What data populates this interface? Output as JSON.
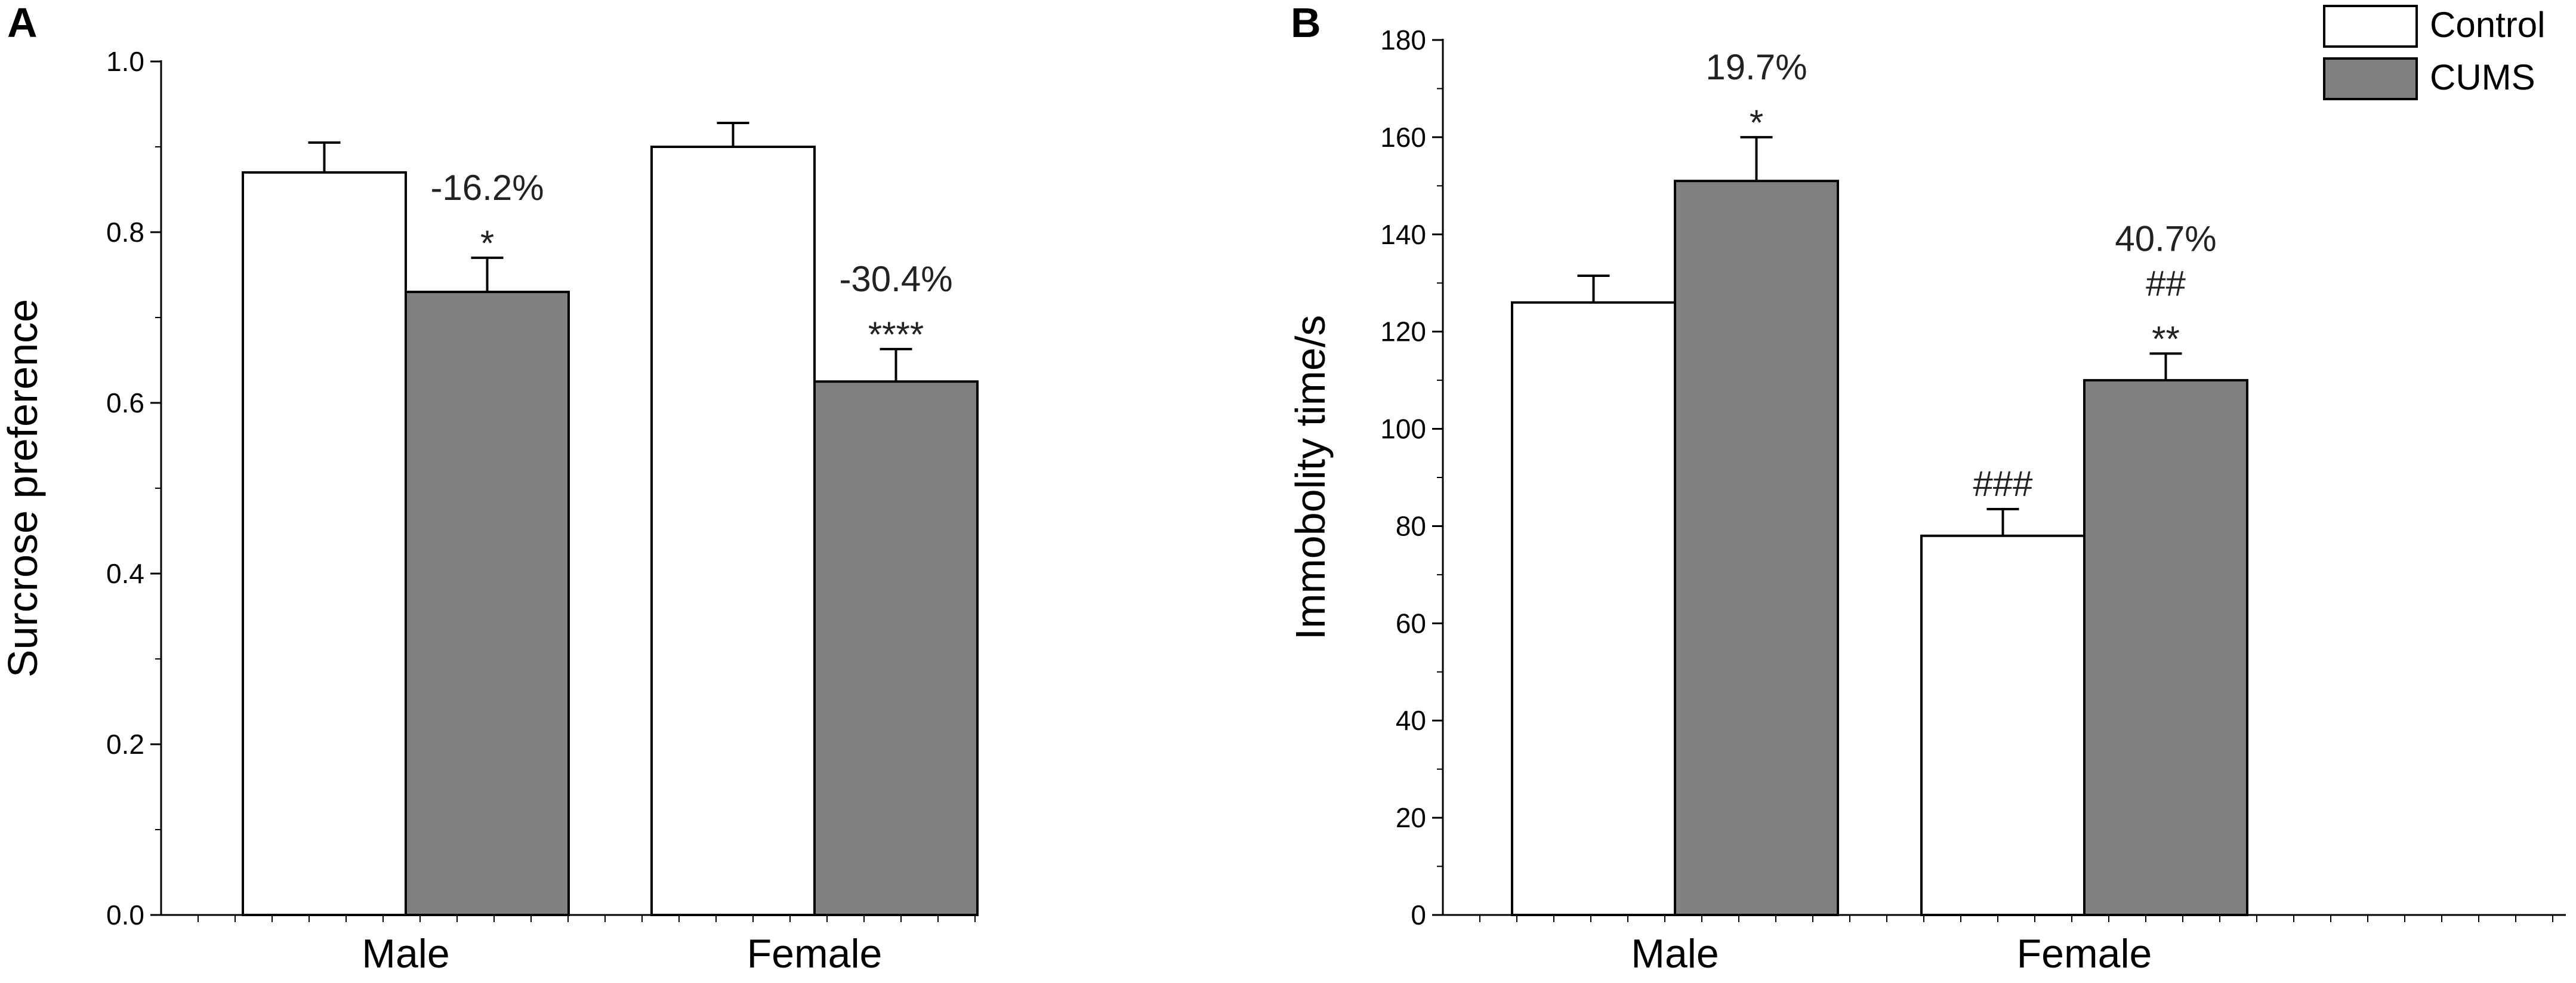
{
  "chart_data": [
    {
      "panel": "A",
      "type": "bar",
      "categories": [
        "Male",
        "Female"
      ],
      "series": [
        {
          "name": "Control",
          "values": [
            0.87,
            0.9
          ],
          "errors": [
            0.035,
            0.028
          ],
          "color": "#ffffff"
        },
        {
          "name": "CUMS",
          "values": [
            0.73,
            0.625
          ],
          "errors": [
            0.04,
            0.038
          ],
          "color": "#808080"
        }
      ],
      "ylabel": "Surcrose preference",
      "xlabel": "",
      "ylim": [
        0,
        1.0
      ],
      "yticks": [
        0.0,
        0.2,
        0.4,
        0.6,
        0.8,
        1.0
      ],
      "ytick_labels": [
        "0.0",
        "0.2",
        "0.4",
        "0.6",
        "0.8",
        "1.0"
      ],
      "annotations": [
        {
          "category": 0,
          "series": 1,
          "lines": [
            "-16.2%",
            "*"
          ]
        },
        {
          "category": 1,
          "series": 1,
          "lines": [
            "-30.4%",
            "****"
          ]
        }
      ]
    },
    {
      "panel": "B",
      "type": "bar",
      "categories": [
        "Male",
        "Female"
      ],
      "series": [
        {
          "name": "Control",
          "values": [
            126,
            78
          ],
          "errors": [
            5.5,
            5.5
          ],
          "color": "#ffffff"
        },
        {
          "name": "CUMS",
          "values": [
            151,
            110
          ],
          "errors": [
            9,
            5.5
          ],
          "color": "#808080"
        }
      ],
      "ylabel": "Immobolity time/s",
      "xlabel": "",
      "ylim": [
        0,
        180
      ],
      "yticks": [
        0,
        20,
        40,
        60,
        80,
        100,
        120,
        140,
        160,
        180
      ],
      "ytick_labels": [
        "0",
        "20",
        "40",
        "60",
        "80",
        "100",
        "120",
        "140",
        "160",
        "180"
      ],
      "annotations": [
        {
          "category": 0,
          "series": 1,
          "lines": [
            "19.7%",
            "*"
          ]
        },
        {
          "category": 1,
          "series": 0,
          "lines": [
            "###"
          ]
        },
        {
          "category": 1,
          "series": 1,
          "lines": [
            "40.7%",
            "##",
            "**"
          ]
        }
      ],
      "legend": {
        "position": "top-right",
        "entries": [
          {
            "label": "Control",
            "color": "#ffffff"
          },
          {
            "label": "CUMS",
            "color": "#808080"
          }
        ]
      }
    }
  ]
}
